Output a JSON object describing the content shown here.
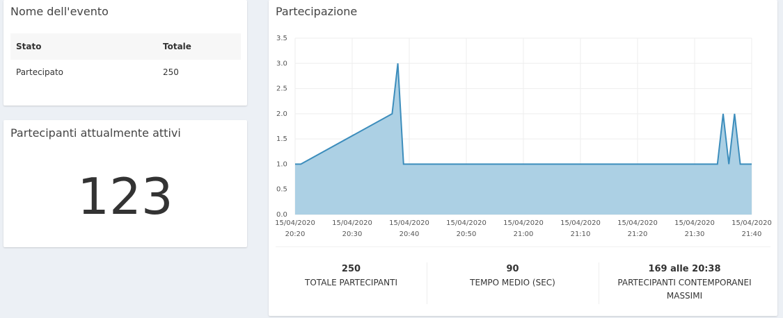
{
  "event_panel": {
    "title": "Nome dell'evento",
    "table": {
      "header": [
        "Stato",
        "Totale"
      ],
      "rows": [
        [
          "Partecipato",
          250
        ]
      ]
    }
  },
  "active_panel": {
    "title": "Partecipanti attualmente attivi",
    "value": 123
  },
  "chart_data": {
    "type": "area",
    "title": "Partecipazione",
    "x": [
      "15/04/2020 20:20",
      "15/04/2020 20:21",
      "15/04/2020 20:37",
      "15/04/2020 20:38",
      "15/04/2020 20:39",
      "15/04/2020 21:34",
      "15/04/2020 21:35",
      "15/04/2020 21:36",
      "15/04/2020 21:37",
      "15/04/2020 21:38",
      "15/04/2020 21:40"
    ],
    "values": [
      1,
      1,
      2,
      3,
      1,
      1,
      2,
      1,
      2,
      1,
      1
    ],
    "color": "#3c8dbc",
    "fill": "#acd0e4",
    "xlim": [
      "15/04/2020 20:20",
      "15/04/2020 21:40"
    ],
    "xticks": [
      "15/04/2020 20:20",
      "15/04/2020 20:30",
      "15/04/2020 20:40",
      "15/04/2020 20:50",
      "15/04/2020 21:00",
      "15/04/2020 21:10",
      "15/04/2020 21:20",
      "15/04/2020 21:30",
      "15/04/2020 21:40"
    ],
    "ylim": [
      0,
      3.5
    ],
    "yticks": [
      {
        "value": 0,
        "label": "0.0"
      },
      0.5,
      {
        "value": 1,
        "label": "1.0"
      },
      1.5,
      {
        "value": 2,
        "label": "2.0"
      },
      2.5,
      {
        "value": 3,
        "label": "3.0"
      },
      3.5
    ],
    "grid": true
  },
  "stats": [
    {
      "value": 250,
      "label": "TOTALE PARTECIPANTI"
    },
    {
      "value": 90,
      "label": "TEMPO MEDIO (SEC)"
    },
    {
      "value": "169 alle 20:38",
      "label": "PARTECIPANTI CONTEMPORANEI MASSIMI"
    }
  ]
}
